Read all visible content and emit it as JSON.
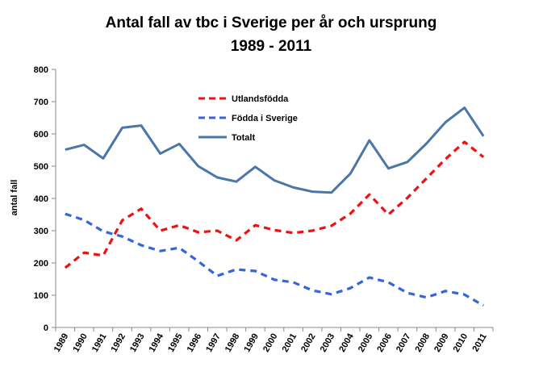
{
  "chart_data": {
    "type": "line",
    "title": "Antal fall av tbc i Sverige per år och ursprung",
    "subtitle": "1989 - 2011",
    "ylabel": "antal fall",
    "xlabel": "",
    "ylim": [
      0,
      800
    ],
    "yticks": [
      "0",
      "100",
      "200",
      "300",
      "400",
      "500",
      "600",
      "700",
      "800"
    ],
    "categories": [
      "1989",
      "1990",
      "1991",
      "1992",
      "1993",
      "1994",
      "1995",
      "1996",
      "1997",
      "1998",
      "1999",
      "2000",
      "2001",
      "2002",
      "2003",
      "2004",
      "2005",
      "2006",
      "2007",
      "2008",
      "2009",
      "2010",
      "2011"
    ],
    "legend_position": "top-center",
    "grid": false,
    "series": [
      {
        "name": "Utlandsfödda",
        "color": "#ee1111",
        "dash": "dashed",
        "values": [
          185,
          232,
          223,
          332,
          368,
          300,
          317,
          295,
          300,
          270,
          317,
          302,
          293,
          300,
          315,
          353,
          412,
          350,
          402,
          462,
          522,
          575,
          528
        ]
      },
      {
        "name": "Födda i Sverige",
        "color": "#3366dd",
        "dash": "dashed",
        "values": [
          352,
          333,
          298,
          282,
          255,
          237,
          247,
          205,
          160,
          180,
          175,
          148,
          140,
          115,
          103,
          122,
          155,
          140,
          107,
          93,
          113,
          102,
          68
        ]
      },
      {
        "name": "Totalt",
        "color": "#4a76a8",
        "dash": "solid",
        "values": [
          551,
          566,
          524,
          619,
          626,
          539,
          569,
          500,
          465,
          452,
          498,
          456,
          434,
          421,
          418,
          477,
          580,
          493,
          513,
          570,
          636,
          681,
          593
        ]
      }
    ]
  }
}
